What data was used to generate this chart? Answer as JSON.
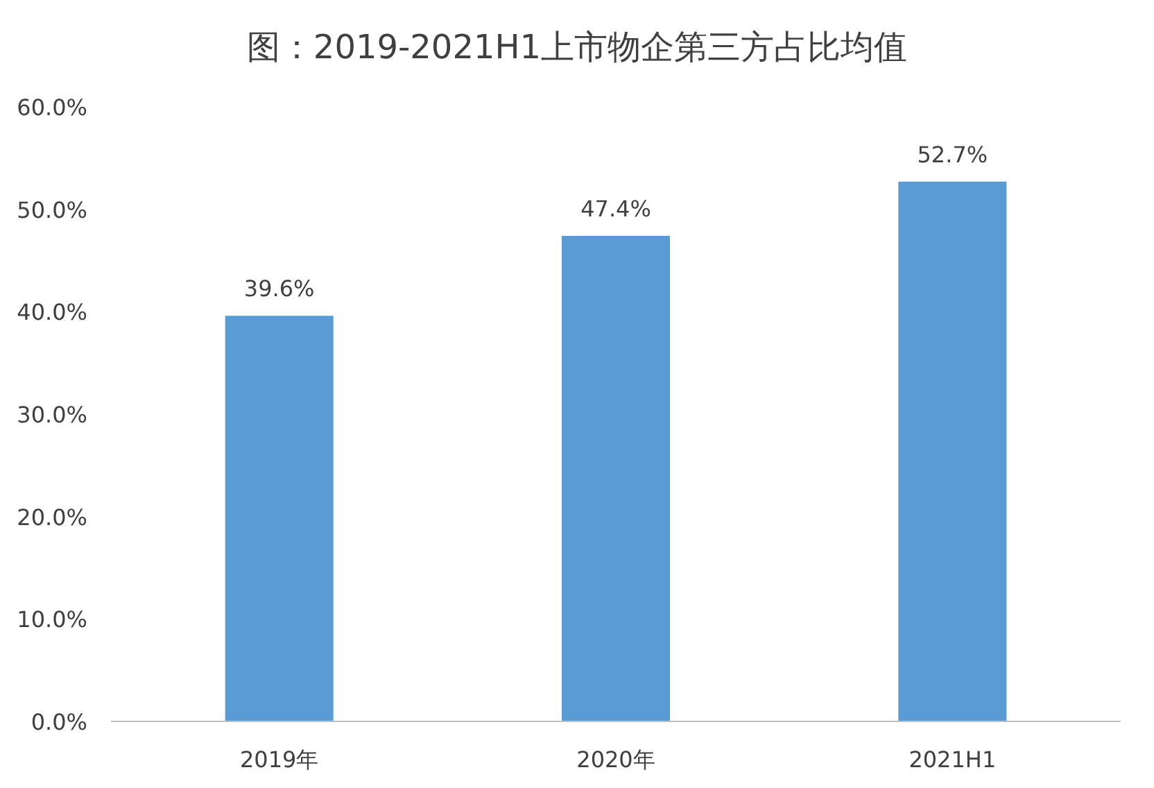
{
  "chart_data": {
    "type": "bar",
    "title": "图：2019-2021H1上市物企第三方占比均值",
    "categories": [
      "2019年",
      "2020年",
      "2021H1"
    ],
    "values": [
      39.6,
      47.4,
      52.7
    ],
    "value_labels": [
      "39.6%",
      "47.4%",
      "52.7%"
    ],
    "color": "#5b9bd5",
    "ylim": [
      0,
      60
    ],
    "yticks": [
      {
        "value": 0,
        "label": "0.0%"
      },
      {
        "value": 10,
        "label": "10.0%"
      },
      {
        "value": 20,
        "label": "20.0%"
      },
      {
        "value": 30,
        "label": "30.0%"
      },
      {
        "value": 40,
        "label": "40.0%"
      },
      {
        "value": 50,
        "label": "50.0%"
      },
      {
        "value": 60,
        "label": "60.0%"
      }
    ],
    "grid": false
  }
}
